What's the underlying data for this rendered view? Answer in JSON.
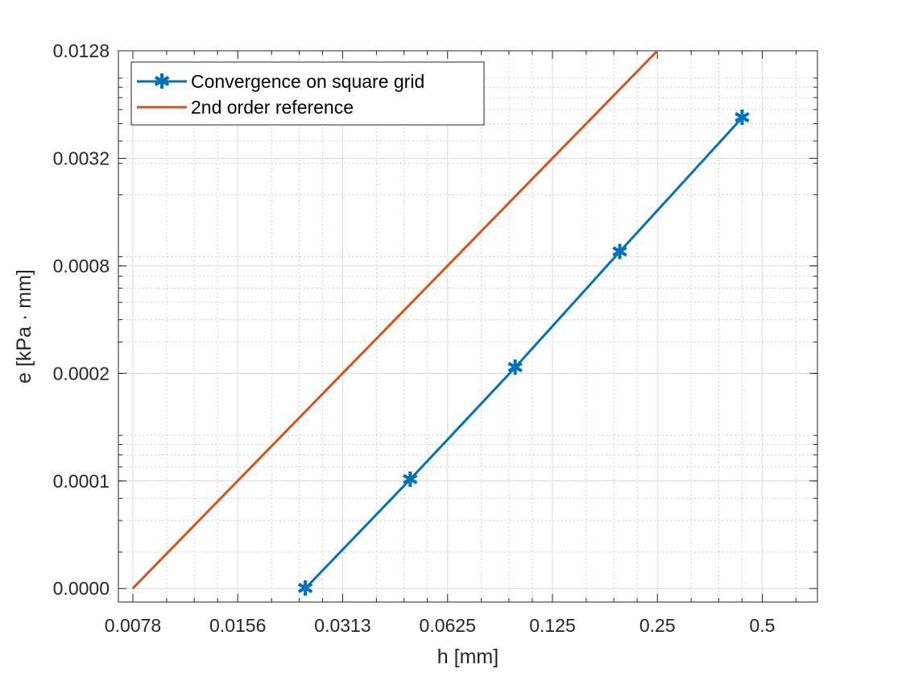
{
  "chart_data": {
    "type": "line",
    "xlabel": "h [mm]",
    "ylabel": "e [kPa · mm]",
    "x_scale": "log2",
    "y_scale": "log",
    "xlim": [
      0.0071,
      0.72
    ],
    "ylim": [
      1.05e-05,
      0.0128
    ],
    "x_ticks": [
      0.0078125,
      0.015625,
      0.03125,
      0.0625,
      0.125,
      0.25,
      0.5
    ],
    "x_tick_labels": [
      "0.0078",
      "0.0156",
      "0.0313",
      "0.0625",
      "0.125",
      "0.25",
      "0.5"
    ],
    "y_ticks": [
      1.25e-05,
      5e-05,
      0.0002,
      0.0008,
      0.0032,
      0.0128
    ],
    "y_tick_labels": [
      "0.0000",
      "0.0001",
      "0.0002",
      "0.0008",
      "0.0032",
      "0.0128"
    ],
    "grid": true,
    "minor_grid": true,
    "legend_position": "top-left",
    "series": [
      {
        "name": "Convergence on square grid",
        "color": "#0072BD",
        "marker": "asterisk",
        "x": [
          0.0244,
          0.0488,
          0.0977,
          0.195,
          0.4375
        ],
        "y": [
          1.25e-05,
          5.1e-05,
          0.000216,
          0.00096,
          0.0054
        ]
      },
      {
        "name": "2nd order reference",
        "color": "#D95319",
        "marker": "none",
        "x": [
          0.0078,
          0.25
        ],
        "y": [
          1.25e-05,
          0.0128
        ]
      }
    ]
  }
}
